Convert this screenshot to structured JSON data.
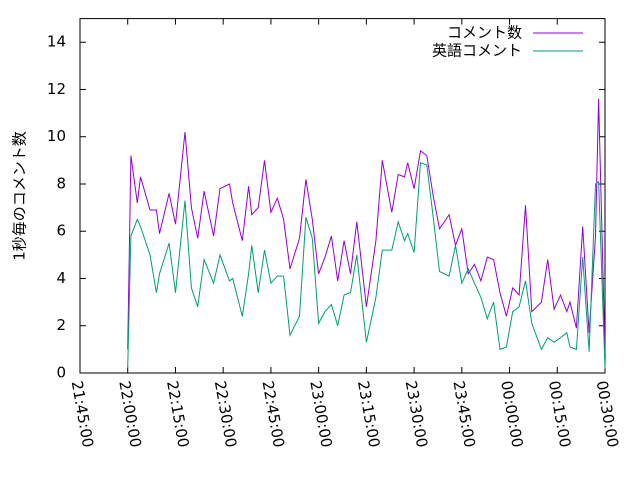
{
  "chart_data": {
    "type": "line",
    "ylabel": "1秒毎のコメント数",
    "x": [
      "22:00:00",
      "22:01:00",
      "22:03:00",
      "22:04:00",
      "22:07:00",
      "22:09:00",
      "22:10:00",
      "22:13:00",
      "22:15:00",
      "22:18:00",
      "22:20:00",
      "22:22:00",
      "22:24:00",
      "22:27:00",
      "22:29:00",
      "22:32:00",
      "22:33:00",
      "22:36:00",
      "22:38:00",
      "22:39:00",
      "22:41:00",
      "22:43:00",
      "22:45:00",
      "22:47:00",
      "22:49:00",
      "22:51:00",
      "22:54:00",
      "22:56:00",
      "22:58:00",
      "23:00:00",
      "23:02:00",
      "23:04:00",
      "23:06:00",
      "23:08:00",
      "23:10:00",
      "23:12:00",
      "23:15:00",
      "23:18:00",
      "23:20:00",
      "23:23:00",
      "23:25:00",
      "23:27:00",
      "23:28:00",
      "23:30:00",
      "23:32:00",
      "23:34:00",
      "23:36:00",
      "23:38:00",
      "23:41:00",
      "23:43:00",
      "23:45:00",
      "23:47:00",
      "23:49:00",
      "23:51:00",
      "23:53:00",
      "23:55:00",
      "23:57:00",
      "23:59:00",
      "00:01:00",
      "00:03:00",
      "00:05:00",
      "00:07:00",
      "00:10:00",
      "00:12:00",
      "00:14:00",
      "00:16:00",
      "00:18:00",
      "00:19:00",
      "00:21:00",
      "00:23:00",
      "00:25:00",
      "00:27:00",
      "00:28:00",
      "00:30:00"
    ],
    "series": [
      {
        "name": "コメント数",
        "color": "#9400d3",
        "values": [
          1.0,
          9.2,
          7.2,
          8.3,
          6.9,
          6.9,
          5.9,
          7.6,
          6.3,
          10.2,
          7.0,
          5.7,
          7.7,
          5.8,
          7.8,
          8.0,
          7.2,
          5.6,
          7.9,
          6.7,
          7.0,
          9.0,
          6.8,
          7.4,
          6.5,
          4.4,
          5.7,
          8.2,
          6.5,
          4.2,
          4.9,
          5.8,
          3.9,
          5.6,
          4.2,
          6.4,
          2.8,
          5.6,
          9.0,
          6.8,
          8.4,
          8.3,
          8.9,
          7.8,
          9.4,
          9.2,
          7.5,
          6.1,
          6.7,
          5.4,
          6.1,
          4.2,
          4.6,
          3.9,
          4.9,
          4.8,
          3.4,
          2.4,
          3.6,
          3.3,
          7.1,
          2.6,
          3.0,
          4.8,
          2.7,
          3.3,
          2.6,
          3.0,
          1.9,
          6.2,
          1.7,
          5.8,
          11.6,
          0.8
        ]
      },
      {
        "name": "英語コメント",
        "color": "#009e73",
        "values": [
          0.2,
          5.8,
          6.5,
          6.2,
          5.0,
          3.4,
          4.2,
          5.5,
          3.4,
          7.3,
          3.6,
          2.8,
          4.8,
          3.8,
          5.0,
          3.9,
          4.0,
          2.4,
          4.2,
          5.4,
          3.4,
          5.2,
          3.8,
          4.1,
          4.1,
          1.6,
          2.4,
          6.6,
          5.7,
          2.1,
          2.6,
          2.9,
          2.0,
          3.3,
          3.4,
          5.0,
          1.3,
          3.2,
          5.2,
          5.2,
          6.4,
          5.6,
          5.9,
          5.1,
          8.9,
          8.8,
          6.6,
          4.3,
          4.1,
          5.4,
          3.8,
          4.4,
          3.8,
          3.2,
          2.3,
          3.0,
          1.0,
          1.1,
          2.6,
          2.8,
          3.9,
          2.1,
          1.0,
          1.5,
          1.3,
          1.5,
          1.7,
          1.1,
          1.0,
          4.9,
          0.9,
          8.0,
          8.1,
          0.2
        ]
      }
    ],
    "xlim": [
      "21:45:00",
      "00:30:00"
    ],
    "xticks": [
      "21:45:00",
      "22:00:00",
      "22:15:00",
      "22:30:00",
      "22:45:00",
      "23:00:00",
      "23:15:00",
      "23:30:00",
      "23:45:00",
      "00:00:00",
      "00:15:00",
      "00:30:00"
    ],
    "ylim": [
      0,
      15
    ],
    "yticks": [
      0,
      2,
      4,
      6,
      8,
      10,
      12,
      14
    ],
    "legend": "top-right"
  }
}
